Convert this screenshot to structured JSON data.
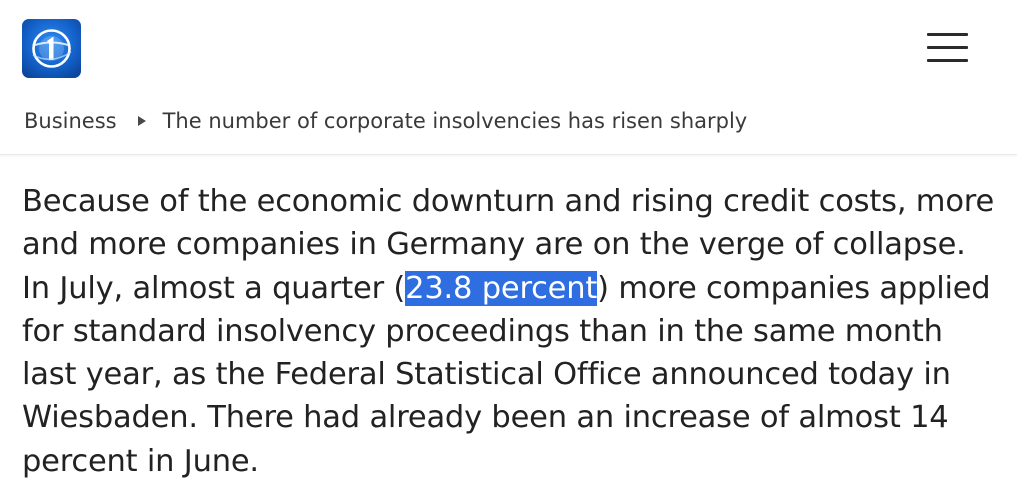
{
  "header": {
    "logo_icon": "tagesschau-logo-icon",
    "menu_icon": "hamburger-menu-icon"
  },
  "breadcrumb": {
    "section": "Business",
    "current": "The number of corporate insolvencies has risen sharply"
  },
  "article": {
    "text_before": "Because of the economic downturn and rising credit costs, more and more companies in Germany are on the verge of collapse. In July, almost a quarter (",
    "highlighted": "23.8 percent",
    "text_after": ") more companies applied for standard insolvency proceedings than in the same month last year, as the Federal Statistical Office announced today in Wiesbaden. There had already been an increase of almost 14 percent in June."
  },
  "colors": {
    "selection": "#2e6ee0",
    "logo_blue": "#1360c9"
  }
}
